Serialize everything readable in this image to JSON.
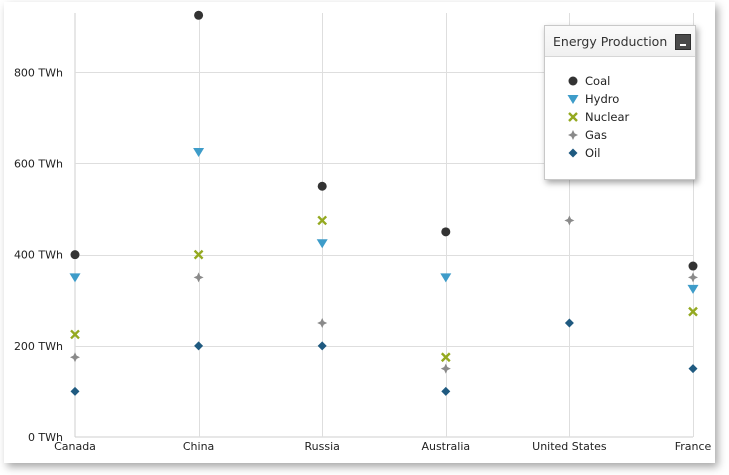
{
  "chart_data": {
    "type": "scatter",
    "title": "",
    "xlabel": "",
    "ylabel": "",
    "categories": [
      "Canada",
      "China",
      "Russia",
      "Australia",
      "United States",
      "France"
    ],
    "y_tick_labels": [
      "0 TWh",
      "200 TWh",
      "400 TWh",
      "600 TWh",
      "800 TWh"
    ],
    "y_ticks": [
      0,
      200,
      400,
      600,
      800
    ],
    "ylim": [
      0,
      930
    ],
    "grid": true,
    "legend_title": "Energy Production",
    "legend_position": "top-right",
    "series": [
      {
        "name": "Coal",
        "marker": "circle",
        "color": "#333333",
        "values": [
          400,
          925,
          550,
          450,
          null,
          375
        ]
      },
      {
        "name": "Hydro",
        "marker": "triangle-down",
        "color": "#3e9cc9",
        "values": [
          350,
          625,
          425,
          350,
          null,
          325
        ]
      },
      {
        "name": "Nuclear",
        "marker": "x",
        "color": "#94a920",
        "values": [
          225,
          400,
          475,
          175,
          null,
          275
        ]
      },
      {
        "name": "Gas",
        "marker": "star",
        "color": "#8a8a8a",
        "values": [
          175,
          350,
          250,
          150,
          475,
          350
        ]
      },
      {
        "name": "Oil",
        "marker": "diamond",
        "color": "#1f5a80",
        "values": [
          100,
          200,
          200,
          100,
          250,
          150
        ]
      }
    ]
  }
}
